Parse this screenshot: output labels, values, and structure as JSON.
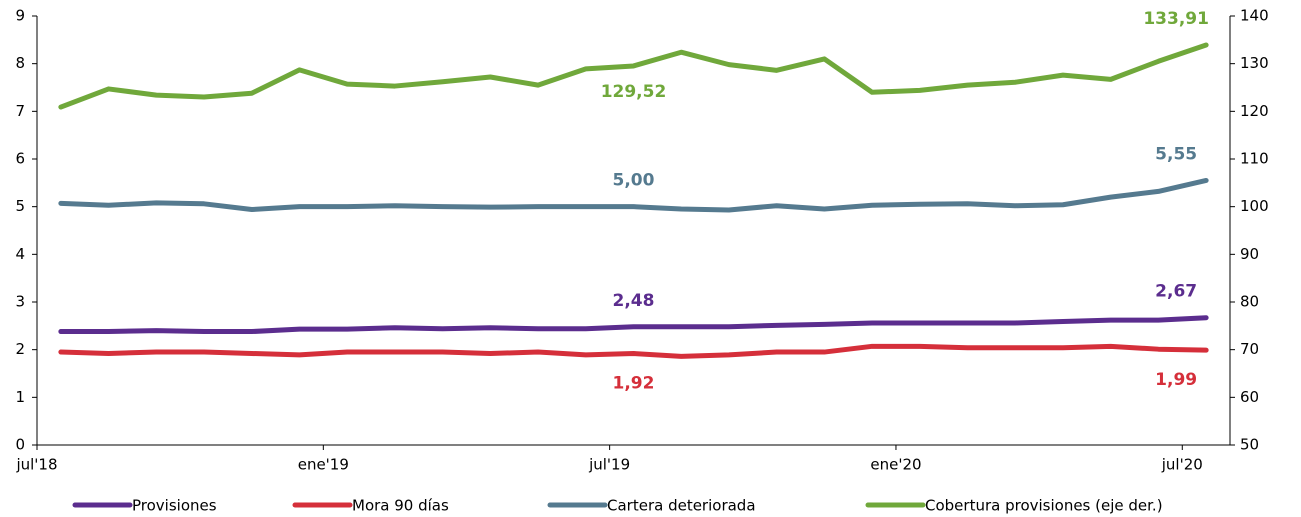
{
  "chart_data": {
    "type": "line",
    "categories": [
      "jul'18",
      null,
      null,
      null,
      null,
      null,
      "ene'19",
      null,
      null,
      null,
      null,
      null,
      "jul'19",
      null,
      null,
      null,
      null,
      null,
      "ene'20",
      null,
      null,
      null,
      null,
      null,
      "jul'20"
    ],
    "ylim": [
      0,
      9
    ],
    "yticks": [
      0,
      1,
      2,
      3,
      4,
      5,
      6,
      7,
      8,
      9
    ],
    "y2lim": [
      50,
      140
    ],
    "y2ticks": [
      50,
      60,
      70,
      80,
      90,
      100,
      110,
      120,
      130,
      140
    ],
    "series": [
      {
        "name": "Provisiones",
        "color": "#5b2d8e",
        "values": [
          2.38,
          2.38,
          2.4,
          2.38,
          2.38,
          2.43,
          2.43,
          2.46,
          2.44,
          2.46,
          2.44,
          2.44,
          2.48,
          2.48,
          2.48,
          2.51,
          2.53,
          2.56,
          2.56,
          2.56,
          2.56,
          2.59,
          2.62,
          2.62,
          2.67
        ],
        "value_labels": [
          null,
          null,
          null,
          null,
          null,
          null,
          null,
          null,
          null,
          null,
          null,
          null,
          "2,48",
          null,
          null,
          null,
          null,
          null,
          null,
          null,
          null,
          null,
          null,
          null,
          "2,67"
        ]
      },
      {
        "name": "Mora 90 días",
        "color": "#d52f3a",
        "values": [
          1.95,
          1.92,
          1.95,
          1.95,
          1.92,
          1.89,
          1.95,
          1.95,
          1.95,
          1.92,
          1.95,
          1.89,
          1.92,
          1.86,
          1.89,
          1.95,
          1.95,
          2.07,
          2.07,
          2.04,
          2.04,
          2.04,
          2.07,
          2.01,
          1.99
        ],
        "value_labels": [
          null,
          null,
          null,
          null,
          null,
          null,
          null,
          null,
          null,
          null,
          null,
          null,
          "1,92",
          null,
          null,
          null,
          null,
          null,
          null,
          null,
          null,
          null,
          null,
          null,
          "1,99"
        ]
      },
      {
        "name": "Cartera deteriorada",
        "color": "#557a8f",
        "values": [
          5.07,
          5.03,
          5.08,
          5.06,
          4.94,
          5.0,
          5.0,
          5.02,
          5.0,
          4.99,
          5.0,
          5.0,
          5.0,
          4.95,
          4.93,
          5.02,
          4.95,
          5.03,
          5.05,
          5.06,
          5.02,
          5.04,
          5.2,
          5.32,
          5.55
        ],
        "value_labels": [
          null,
          null,
          null,
          null,
          null,
          null,
          null,
          null,
          null,
          null,
          null,
          null,
          "5,00",
          null,
          null,
          null,
          null,
          null,
          null,
          null,
          null,
          null,
          null,
          null,
          "5,55"
        ]
      },
      {
        "name": "Cobertura provisiones (eje der.)",
        "color": "#70a83b",
        "axis": "y2",
        "values": [
          120.9,
          124.7,
          123.4,
          123.0,
          123.8,
          128.7,
          125.7,
          125.3,
          126.2,
          127.2,
          125.5,
          128.9,
          129.52,
          132.4,
          129.8,
          128.6,
          131.0,
          124.0,
          124.4,
          125.5,
          126.1,
          127.6,
          126.7,
          130.5,
          133.91
        ],
        "value_labels": [
          null,
          null,
          null,
          null,
          null,
          null,
          null,
          null,
          null,
          null,
          null,
          null,
          "129,52",
          null,
          null,
          null,
          null,
          null,
          null,
          null,
          null,
          null,
          null,
          null,
          "133,91"
        ]
      }
    ]
  }
}
